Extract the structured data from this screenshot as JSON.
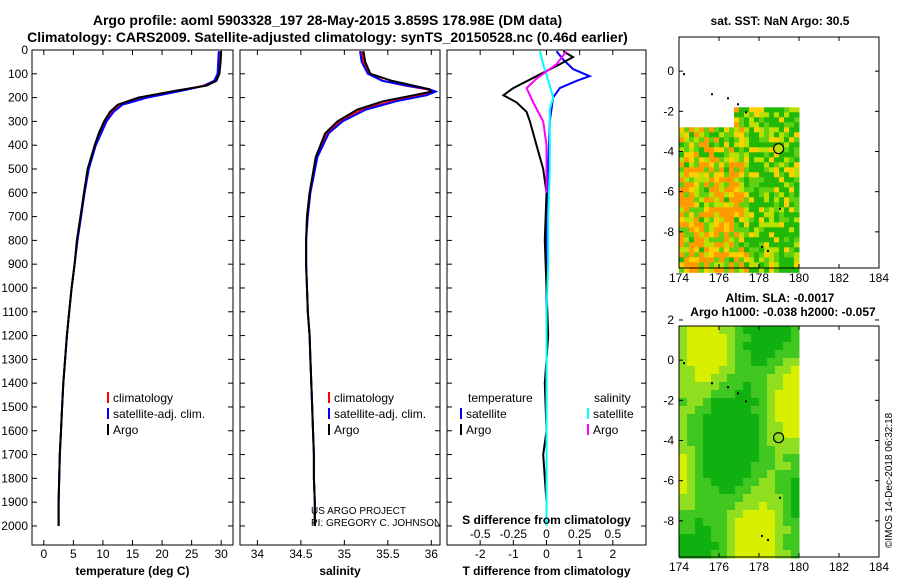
{
  "header": {
    "title_line1": "Argo profile: aoml 5903328_197 28-May-2015 3.859S 178.98E (DM data)",
    "title_line2": "Climatology: CARS2009. Satellite-adjusted climatology: synTS_20150528.nc (0.46d earlier)"
  },
  "credits": {
    "project": "US ARGO PROJECT",
    "pi": "PI: GREGORY C. JOHNSON",
    "imos": "©IMOS 14-Dec-2018 06:32:18"
  },
  "colors": {
    "climatology": "#ff0000",
    "satellite": "#0000ff",
    "argo": "#000000",
    "s_satellite": "#00ffff",
    "s_argo": "#ff00ff",
    "marker": "#000000"
  },
  "chart_data": [
    {
      "type": "line",
      "id": "temperature",
      "xlabel": "temperature (deg C)",
      "xlim": [
        -2,
        32
      ],
      "xticks": [
        0,
        5,
        10,
        15,
        20,
        25,
        30
      ],
      "ylim": [
        2080,
        0
      ],
      "yticks": [
        0,
        100,
        200,
        300,
        400,
        500,
        600,
        700,
        800,
        900,
        1000,
        1100,
        1200,
        1300,
        1400,
        1500,
        1600,
        1700,
        1800,
        1900,
        2000
      ],
      "legend": [
        "climatology",
        "satellite-adj. clim.",
        "Argo"
      ],
      "series": [
        {
          "name": "climatology",
          "color": "climatology",
          "x": [
            29.8,
            29.7,
            29.5,
            28.8,
            27.0,
            23.0,
            17.0,
            13.0,
            11.5,
            10.5,
            9.6,
            8.7,
            7.5,
            6.8,
            6.2,
            5.6,
            5.2,
            4.7,
            4.3,
            3.9,
            3.6,
            3.3,
            3.1,
            2.9,
            2.7,
            2.6,
            2.5,
            2.5
          ],
          "y": [
            5,
            50,
            100,
            130,
            150,
            170,
            200,
            230,
            260,
            300,
            350,
            400,
            500,
            600,
            700,
            800,
            900,
            1000,
            1100,
            1200,
            1300,
            1400,
            1500,
            1600,
            1700,
            1800,
            1900,
            2000
          ]
        },
        {
          "name": "satellite-adj. clim.",
          "color": "satellite",
          "x": [
            29.6,
            29.5,
            29.4,
            28.8,
            27.2,
            23.5,
            17.5,
            13.3,
            11.8,
            10.6,
            9.7,
            8.8,
            7.6,
            6.9,
            6.3,
            5.7,
            5.2,
            4.7,
            4.3,
            3.9,
            3.6,
            3.3,
            3.1,
            2.9,
            2.7,
            2.6,
            2.5,
            2.5
          ],
          "y": [
            5,
            50,
            100,
            130,
            150,
            170,
            200,
            230,
            260,
            300,
            350,
            400,
            500,
            600,
            700,
            800,
            900,
            1000,
            1100,
            1200,
            1300,
            1400,
            1500,
            1600,
            1700,
            1800,
            1900,
            2000
          ]
        },
        {
          "name": "Argo",
          "color": "argo",
          "x": [
            30.0,
            29.9,
            29.7,
            29.2,
            27.5,
            22.5,
            16.0,
            12.5,
            11.2,
            10.2,
            9.3,
            8.6,
            7.4,
            6.8,
            6.2,
            5.6,
            5.2,
            4.7,
            4.3,
            3.9,
            3.6,
            3.3,
            3.1,
            2.9,
            2.7,
            2.6,
            2.5,
            2.5
          ],
          "y": [
            5,
            50,
            100,
            130,
            150,
            170,
            200,
            230,
            260,
            300,
            350,
            400,
            500,
            600,
            700,
            800,
            900,
            1000,
            1100,
            1200,
            1300,
            1400,
            1500,
            1600,
            1700,
            1800,
            1900,
            2000
          ]
        }
      ]
    },
    {
      "type": "line",
      "id": "salinity",
      "xlabel": "salinity",
      "xlim": [
        33.8,
        36.1
      ],
      "xticks": [
        34,
        34.5,
        35,
        35.5,
        36
      ],
      "xticklabels": [
        "34",
        "34.5",
        "35",
        "35.5",
        "36"
      ],
      "ylim": [
        2080,
        0
      ],
      "legend": [
        "climatology",
        "satellite-adj. clim.",
        "Argo"
      ],
      "series": [
        {
          "name": "climatology",
          "color": "climatology",
          "x": [
            35.2,
            35.22,
            35.28,
            35.45,
            35.7,
            35.95,
            36.02,
            35.9,
            35.55,
            35.2,
            34.95,
            34.8,
            34.68,
            34.6,
            34.57,
            34.56,
            34.56,
            34.57,
            34.58,
            34.6,
            34.61,
            34.62,
            34.63,
            34.64,
            34.65,
            34.65,
            34.66,
            34.66
          ],
          "y": [
            5,
            50,
            100,
            130,
            150,
            165,
            175,
            190,
            215,
            250,
            300,
            350,
            450,
            600,
            700,
            800,
            900,
            1000,
            1100,
            1200,
            1300,
            1400,
            1500,
            1600,
            1700,
            1800,
            1900,
            2000
          ]
        },
        {
          "name": "satellite-adj. clim.",
          "color": "satellite",
          "x": [
            35.18,
            35.2,
            35.27,
            35.44,
            35.72,
            35.98,
            36.05,
            35.95,
            35.6,
            35.25,
            34.98,
            34.82,
            34.69,
            34.61,
            34.58,
            34.56,
            34.56,
            34.57,
            34.58,
            34.6,
            34.61,
            34.62,
            34.63,
            34.64,
            34.65,
            34.65,
            34.66,
            34.66
          ],
          "y": [
            5,
            50,
            100,
            130,
            150,
            165,
            175,
            190,
            215,
            250,
            300,
            350,
            450,
            600,
            700,
            800,
            900,
            1000,
            1100,
            1200,
            1300,
            1400,
            1500,
            1600,
            1700,
            1800,
            1900,
            2000
          ]
        },
        {
          "name": "Argo",
          "color": "argo",
          "x": [
            35.22,
            35.24,
            35.3,
            35.55,
            35.8,
            35.98,
            36.0,
            35.8,
            35.45,
            35.15,
            34.92,
            34.78,
            34.67,
            34.6,
            34.57,
            34.56,
            34.56,
            34.57,
            34.58,
            34.6,
            34.61,
            34.62,
            34.63,
            34.64,
            34.65,
            34.65,
            34.66,
            34.66
          ],
          "y": [
            5,
            50,
            100,
            130,
            150,
            165,
            175,
            190,
            215,
            250,
            300,
            350,
            450,
            600,
            700,
            800,
            900,
            1000,
            1100,
            1200,
            1300,
            1400,
            1500,
            1600,
            1700,
            1800,
            1900,
            2000
          ]
        }
      ]
    },
    {
      "type": "line",
      "id": "difference",
      "xlabel": "T difference from climatology",
      "xlabel_top": "S difference from climatology",
      "xlim": [
        -3,
        3
      ],
      "xticks": [
        -2,
        -1,
        0,
        1,
        2
      ],
      "xticklabels_top": [
        "-0.5",
        "-0.25",
        "0",
        "0.25",
        "0.5"
      ],
      "ylim": [
        2080,
        0
      ],
      "legend_left_title": "temperature",
      "legend_right_title": "salinity",
      "legend": [
        "satellite",
        "Argo",
        "satellite",
        "Argo"
      ],
      "series": [
        {
          "name": "satellite",
          "group": "temperature",
          "color": "satellite",
          "x": [
            0.3,
            0.5,
            0.8,
            1.3,
            0.9,
            0.4,
            0.2,
            0.1,
            0.05,
            0.0,
            0.0,
            0.0,
            0.0,
            0.0,
            0.0,
            0.0
          ],
          "y": [
            5,
            40,
            80,
            110,
            130,
            160,
            200,
            300,
            500,
            700,
            900,
            1100,
            1300,
            1500,
            1800,
            2000
          ]
        },
        {
          "name": "Argo",
          "group": "temperature",
          "color": "argo",
          "x": [
            0.5,
            0.8,
            0.4,
            -0.3,
            -1.0,
            -1.3,
            -0.9,
            -0.6,
            -0.5,
            -0.3,
            -0.1,
            0.0,
            -0.05,
            0.0,
            0.05,
            -0.05,
            0.0,
            -0.1,
            0.0,
            0.0
          ],
          "y": [
            5,
            30,
            60,
            110,
            160,
            190,
            220,
            260,
            300,
            400,
            500,
            600,
            800,
            1000,
            1200,
            1400,
            1600,
            1700,
            1900,
            2000
          ]
        },
        {
          "name": "satellite",
          "group": "salinity",
          "color": "s_satellite",
          "x": [
            -0.2,
            -0.1,
            0.1,
            0.2,
            0.1,
            0.1,
            0.1,
            0.05,
            0.05,
            0.0,
            0.0,
            0.0,
            0.0
          ],
          "y": [
            5,
            60,
            150,
            200,
            250,
            350,
            500,
            700,
            900,
            1100,
            1400,
            1700,
            2000
          ]
        },
        {
          "name": "Argo",
          "group": "salinity",
          "color": "s_argo",
          "x": [
            0.6,
            0.3,
            -0.3,
            -0.6,
            -0.4,
            -0.1,
            0.0,
            0.0,
            0.0
          ],
          "y": [
            5,
            60,
            120,
            160,
            220,
            300,
            400,
            500,
            600
          ]
        }
      ]
    },
    {
      "type": "heatmap",
      "id": "sst_map",
      "title": "sat. SST: NaN Argo: 30.5",
      "xlim": [
        174,
        184
      ],
      "xticks": [
        174,
        176,
        178,
        180,
        182,
        184
      ],
      "ylim": [
        -9.8,
        1.7
      ],
      "yticks": [
        0,
        -2,
        -4,
        -6,
        -8
      ],
      "data_xrange": [
        174,
        180
      ],
      "data_yrange": [
        -9.8,
        -1.8
      ],
      "argo_position": {
        "lon": 178.98,
        "lat": -3.859
      }
    },
    {
      "type": "heatmap",
      "id": "sla_map",
      "title": "Altim. SLA: -0.0017",
      "subtitle": "Argo h1000: -0.038 h2000: -0.057",
      "xlim": [
        174,
        184
      ],
      "xticks": [
        174,
        176,
        178,
        180,
        182,
        184
      ],
      "ylim": [
        -9.8,
        1.7
      ],
      "yticks": [
        2,
        0,
        -2,
        -4,
        -6,
        -8
      ],
      "data_xrange": [
        174,
        180
      ],
      "data_yrange": [
        -9.8,
        1.7
      ],
      "argo_position": {
        "lon": 178.98,
        "lat": -3.859
      }
    }
  ]
}
